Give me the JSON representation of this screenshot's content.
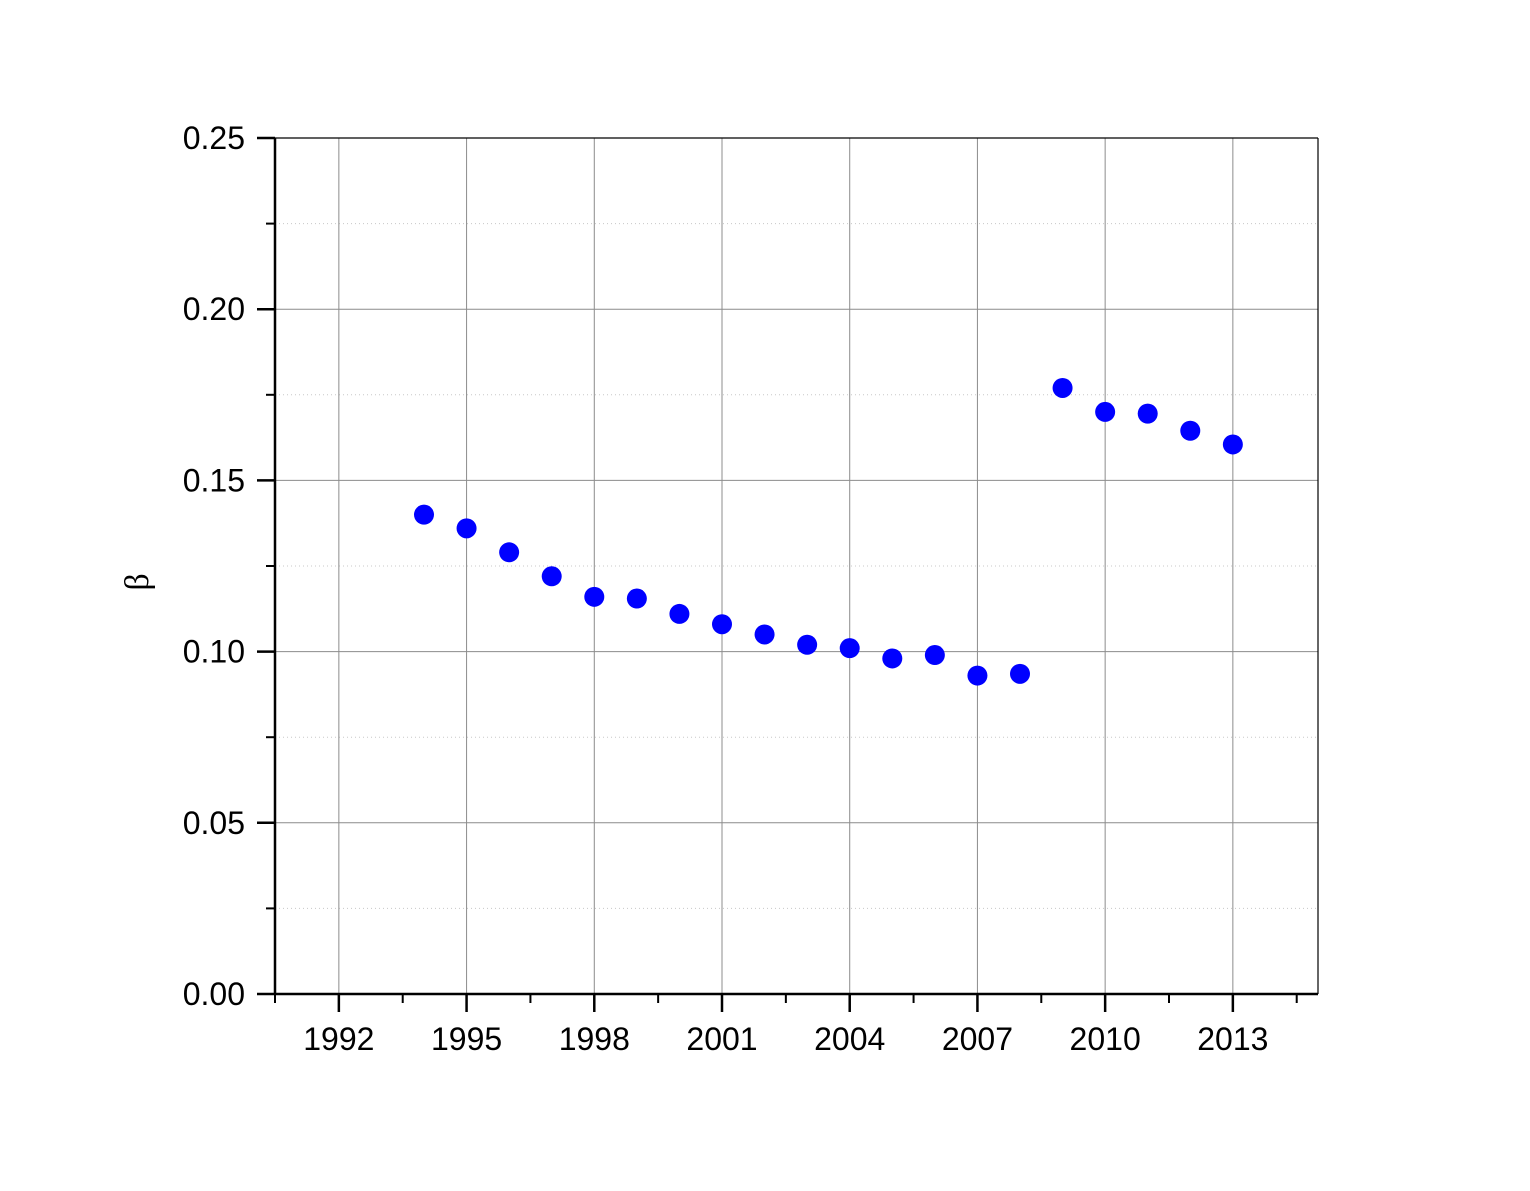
{
  "chart_data": {
    "type": "scatter",
    "title": "",
    "xlabel": "",
    "ylabel": "β",
    "xlim": [
      1990.5,
      2015
    ],
    "ylim": [
      0,
      0.25
    ],
    "x_ticks": [
      1992,
      1995,
      1998,
      2001,
      2004,
      2007,
      2010,
      2013
    ],
    "x_tick_labels": [
      "1992",
      "1995",
      "1998",
      "2001",
      "2004",
      "2007",
      "2010",
      "2013"
    ],
    "y_ticks": [
      0.0,
      0.05,
      0.1,
      0.15,
      0.2,
      0.25
    ],
    "y_tick_labels": [
      "0.00",
      "0.05",
      "0.10",
      "0.15",
      "0.20",
      "0.25"
    ],
    "grid": true,
    "series": [
      {
        "color": "#0000ff",
        "marker": "circle",
        "x": [
          1994,
          1995,
          1996,
          1997,
          1998,
          1999,
          2000,
          2001,
          2002,
          2003,
          2004,
          2005,
          2006,
          2007,
          2008,
          2009,
          2010,
          2011,
          2012,
          2013
        ],
        "y": [
          0.14,
          0.136,
          0.129,
          0.122,
          0.116,
          0.1155,
          0.111,
          0.108,
          0.105,
          0.102,
          0.101,
          0.098,
          0.099,
          0.093,
          0.0935,
          0.177,
          0.17,
          0.1695,
          0.1645,
          0.1605
        ]
      }
    ]
  }
}
